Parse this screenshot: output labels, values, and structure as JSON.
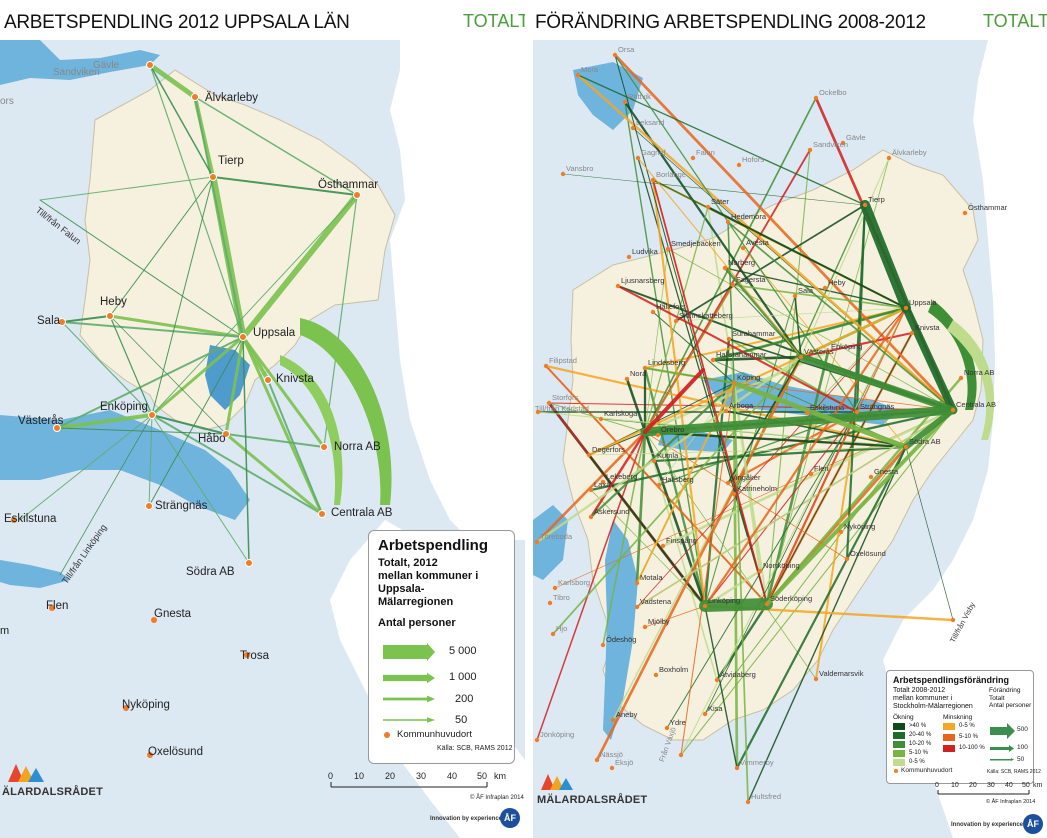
{
  "left": {
    "title": "ARBETSPENDLING 2012 UPPSALA LÄN",
    "tag": "TOTALT",
    "places": {
      "gavle": "Gävle",
      "sandviken": "Sandviken",
      "alvkarleby": "Älvkarleby",
      "tierp": "Tierp",
      "osthammar": "Östhammar",
      "heby": "Heby",
      "sala": "Sala",
      "uppsala": "Uppsala",
      "knivsta": "Knivsta",
      "enkoping": "Enköping",
      "vasteras": "Västerås",
      "habo": "Håbo",
      "norra": "Norra AB",
      "strangnas": "Strängnäs",
      "eskilstuna": "Eskilstuna",
      "centrala": "Centrala AB",
      "sodra": "Södra AB",
      "flen": "Flen",
      "gnesta": "Gnesta",
      "trosa": "Trosa",
      "nykoping": "Nyköping",
      "oxelosund": "Oxelösund",
      "edge_ors": "ors",
      "edge_m": "m"
    },
    "directions": {
      "falun": "Till/från Falun",
      "linkoping": "Till/från Linköping"
    },
    "legend": {
      "title": "Arbetspendling",
      "subtitle": "Totalt, 2012\nmellan kommuner i\nUppsala-\nMälarregionen",
      "unit": "Antal personer",
      "items": [
        {
          "label": "5 000",
          "value": 5000
        },
        {
          "label": "1 000",
          "value": 1000
        },
        {
          "label": "200",
          "value": 200
        },
        {
          "label": "50",
          "value": 50
        }
      ],
      "dot_label": "Kommunhuvudort",
      "source": "Källa: SCB, RAMS 2012"
    },
    "scale": {
      "ticks": [
        "0",
        "10",
        "20",
        "30",
        "40",
        "50"
      ],
      "unit": "km"
    },
    "credit": "© ÅF Infraplan 2014",
    "brand": "MÄLARDALSRÅDET",
    "brand_visible": "ÄLARDALSRÅDET",
    "footer": "Innovation by experience",
    "footer_logo": "ÅF"
  },
  "right": {
    "title": "FÖRÄNDRING ARBETSPENDLING 2008-2012",
    "tag": "TOTALT",
    "places_small": [
      "Orsa",
      "Mora",
      "Rättvik",
      "Leksand",
      "Ockelbo",
      "Gävle",
      "Sandviken",
      "Älvkarleby",
      "Gagnef",
      "Falun",
      "Hofors",
      "Vansbro",
      "Borlänge",
      "Säter",
      "Hedemora",
      "Tierp",
      "Östhammar",
      "Ludvika",
      "Smedjebacken",
      "Avesta",
      "Norberg",
      "Fagersta",
      "Heby",
      "Sala",
      "Uppsala",
      "Ljusnarsberg",
      "Skinnskatteberg",
      "Surahammar",
      "Hällefors",
      "Hallstahammar",
      "Västerås",
      "Enköping",
      "Knivsta",
      "Filipstad",
      "Lindesberg",
      "Nora",
      "Norra AB",
      "Storfors",
      "Köping",
      "Arboga",
      "Eskilstuna",
      "Strängnäs",
      "Centrala AB",
      "Till/från Karlstad",
      "Karlskoga",
      "Örebro",
      "Södra AB",
      "Degerfors",
      "Lekeberg",
      "Kumla",
      "Flen",
      "Hallsberg",
      "Vingåker",
      "Katrineholm",
      "Gnesta",
      "Laxå",
      "Askersund",
      "Nyköping",
      "Oxelösund",
      "Töreboda",
      "Finspång",
      "Karlsborg",
      "Motala",
      "Norrköping",
      "Söderköping",
      "Tibro",
      "Vadstena",
      "Linköping",
      "Hjo",
      "Mjölby",
      "Ödeshög",
      "Boxholm",
      "Valdemarsvik",
      "Åtvidaberg",
      "Kisa",
      "Ydre",
      "Aneby",
      "Nässjö",
      "Eksjö",
      "Vimmerby",
      "Hultsfred",
      "Jönköping",
      "Från Växjö",
      "Till/från Visby"
    ],
    "legend": {
      "title": "Arbetspendlingsförändring",
      "subtitle": "Totalt 2008-2012\nmellan kommuner i\nStockholm-Mälarregionen",
      "increase_title": "Ökning",
      "decrease_title": "Minskning",
      "increase": [
        {
          "label": ">40 %",
          "color": "#0e4a1c"
        },
        {
          "label": "20-40 %",
          "color": "#1e6b2a"
        },
        {
          "label": "10-20 %",
          "color": "#3f8f36"
        },
        {
          "label": "5-10 %",
          "color": "#77b543"
        },
        {
          "label": "0-5 %",
          "color": "#bfdc8c"
        }
      ],
      "decrease": [
        {
          "label": "0-5 %",
          "color": "#f5a623"
        },
        {
          "label": "5-10 %",
          "color": "#e8661c"
        },
        {
          "label": "10-100 %",
          "color": "#d21f1f"
        }
      ],
      "change_title": "Förändring\nTotalt\nAntal personer",
      "change_items": [
        {
          "label": "500",
          "value": 500
        },
        {
          "label": "100",
          "value": 100
        },
        {
          "label": "50",
          "value": 50
        }
      ],
      "dot_label": "Kommunhuvudort",
      "source": "Källa: SCB, RAMS 2012"
    },
    "scale": {
      "ticks": [
        "0",
        "10",
        "20",
        "30",
        "40",
        "50"
      ],
      "unit": "km"
    },
    "credit": "© ÅF Infraplan 2014",
    "brand": "MÄLARDALSRÅDET",
    "brand_visible": "MÄLARDALSRÅDET",
    "footer": "Innovation by experience",
    "footer_logo": "ÅF"
  },
  "colors": {
    "sea": "#ffffff",
    "land": "#dce8f2",
    "region": "#f6f1de",
    "lake": "#6fb4dc",
    "flow": "#7cc24f",
    "flow_dark": "#3a8f4f",
    "decrease": "#d21f1f",
    "dot": "#f07c26"
  }
}
